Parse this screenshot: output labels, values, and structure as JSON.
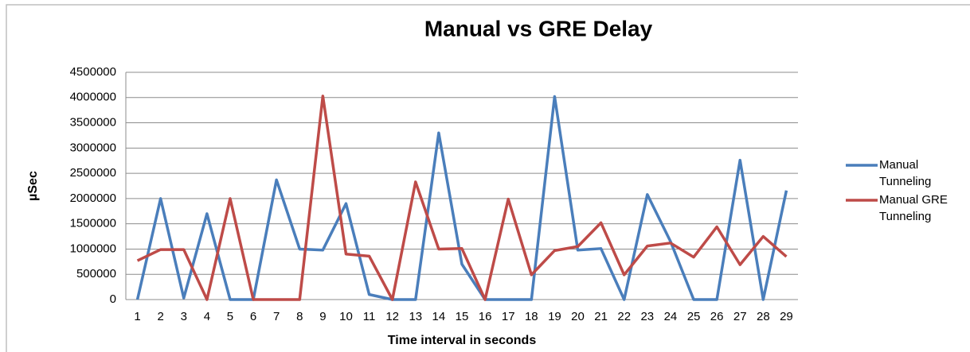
{
  "chart_data": {
    "type": "line",
    "title": "Manual vs GRE Delay",
    "x_label": "Time interval in seconds",
    "y_label": "µSec",
    "categories": [
      "1",
      "2",
      "3",
      "4",
      "5",
      "6",
      "7",
      "8",
      "9",
      "10",
      "11",
      "12",
      "13",
      "14",
      "15",
      "16",
      "17",
      "18",
      "19",
      "20",
      "21",
      "22",
      "23",
      "24",
      "25",
      "26",
      "27",
      "28",
      "29"
    ],
    "series": [
      {
        "name": "Manual Tunneling",
        "color": "#4a7ebb",
        "values": [
          0,
          2000000,
          30000,
          1700000,
          0,
          0,
          2370000,
          1000000,
          980000,
          1900000,
          100000,
          0,
          0,
          3300000,
          700000,
          0,
          0,
          0,
          4020000,
          980000,
          1010000,
          0,
          2080000,
          1150000,
          0,
          0,
          2760000,
          0,
          2160000
        ]
      },
      {
        "name": "Manual GRE Tunneling",
        "color": "#be4b48",
        "values": [
          770000,
          990000,
          990000,
          0,
          2000000,
          0,
          0,
          0,
          4030000,
          900000,
          860000,
          0,
          2330000,
          1000000,
          1010000,
          0,
          1990000,
          490000,
          970000,
          1050000,
          1520000,
          490000,
          1060000,
          1120000,
          840000,
          1440000,
          690000,
          1250000,
          850000
        ]
      }
    ],
    "ylim": [
      0,
      4500000
    ],
    "yticks": [
      0,
      500000,
      1000000,
      1500000,
      2000000,
      2500000,
      3000000,
      3500000,
      4000000,
      4500000
    ],
    "grid": true,
    "legend": "right"
  }
}
